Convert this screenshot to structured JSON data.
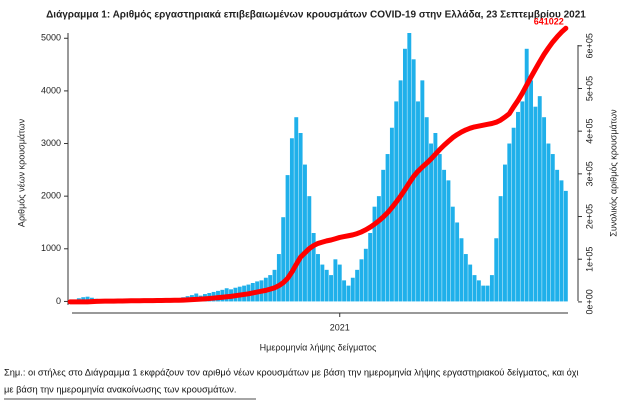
{
  "chart_data": {
    "type": "bar",
    "title": "Διάγραμμα 1: Αριθμός εργαστηριακά επιβεβαιωμένων κρουσμάτων COVID-19 στην Ελλάδα, 23 Σεπτεμβρίου 2021",
    "ylabel": "Αριθμός νέων κρουσμάτων",
    "y2label": "Συνολικός αριθμός κρουσμάτων",
    "xlabel": "Ημερομηνία λήψης δείγματος",
    "xticks": [
      {
        "value": 62,
        "label": "2021"
      }
    ],
    "ylim": [
      -220,
      5100
    ],
    "yticks": [
      0,
      1000,
      2000,
      3000,
      4000,
      5000
    ],
    "y2lim": [
      -26000,
      630000
    ],
    "y2ticks": [
      {
        "value": 0,
        "label": "0e+00"
      },
      {
        "value": 100000,
        "label": "1e+05"
      },
      {
        "value": 200000,
        "label": "2e+05"
      },
      {
        "value": 300000,
        "label": "3e+05"
      },
      {
        "value": 400000,
        "label": "4e+05"
      },
      {
        "value": 500000,
        "label": "5e+05"
      },
      {
        "value": 600000,
        "label": "6e+05"
      }
    ],
    "series": [
      {
        "type": "bar",
        "color": "#1fb0ea",
        "values": [
          10,
          30,
          60,
          80,
          90,
          70,
          50,
          40,
          20,
          15,
          10,
          10,
          15,
          20,
          20,
          15,
          20,
          25,
          20,
          20,
          25,
          30,
          35,
          40,
          50,
          60,
          80,
          100,
          120,
          150,
          110,
          140,
          160,
          180,
          200,
          220,
          250,
          230,
          260,
          280,
          300,
          320,
          350,
          380,
          400,
          450,
          500,
          600,
          900,
          1600,
          2400,
          3100,
          3500,
          3200,
          2600,
          2000,
          1300,
          900,
          700,
          600,
          500,
          800,
          700,
          400,
          300,
          450,
          600,
          800,
          1000,
          1300,
          1800,
          2000,
          2500,
          2800,
          3300,
          3800,
          4200,
          4800,
          5100,
          4600,
          3800,
          4200,
          3500,
          3000,
          3200,
          2800,
          2500,
          2300,
          1800,
          1500,
          1200,
          900,
          700,
          500,
          400,
          300,
          300,
          500,
          1200,
          2000,
          2600,
          3000,
          3300,
          3600,
          3800,
          4800,
          4200,
          3700,
          3900,
          3500,
          3000,
          2800,
          2500,
          2300,
          2100
        ]
      },
      {
        "type": "line",
        "axis": "y2",
        "color": "#ff0000",
        "values": [
          0,
          0,
          5,
          50,
          200,
          600,
          1100,
          1500,
          1700,
          1800,
          1900,
          2000,
          2200,
          2400,
          2600,
          2700,
          2800,
          2900,
          3000,
          3100,
          3300,
          3400,
          3500,
          3600,
          3800,
          4000,
          4300,
          4700,
          5200,
          5800,
          6500,
          7200,
          8000,
          9000,
          10000,
          11000,
          12000,
          13000,
          14500,
          16000,
          17500,
          19000,
          21000,
          23000,
          25000,
          27000,
          30000,
          33000,
          38000,
          45000,
          55000,
          70000,
          88000,
          105000,
          115000,
          125000,
          132000,
          137000,
          140000,
          143000,
          145000,
          148000,
          151000,
          153000,
          155000,
          157000,
          160000,
          164000,
          169000,
          175000,
          182000,
          190000,
          199000,
          209000,
          221000,
          234000,
          248000,
          263000,
          279000,
          294000,
          306000,
          316000,
          325000,
          335000,
          346000,
          357000,
          367000,
          376000,
          385000,
          392000,
          398000,
          403000,
          407000,
          410000,
          412000,
          414000,
          416000,
          418000,
          421000,
          426000,
          433000,
          441000,
          457000,
          472000,
          489000,
          508000,
          527000,
          545000,
          563000,
          580000,
          595000,
          609000,
          621000,
          632000,
          641022
        ]
      }
    ],
    "annotation": "641022",
    "note": [
      "Σημ.: οι στήλες στο Διάγραμμα 1 εκφράζουν τον αριθμό νέων κρουσμάτων με βάση την ημερομηνία λήψης εργαστηριακού δείγματος, και όχι",
      "με βάση την ημερομηνία ανακοίνωσης των κρουσμάτων."
    ]
  }
}
